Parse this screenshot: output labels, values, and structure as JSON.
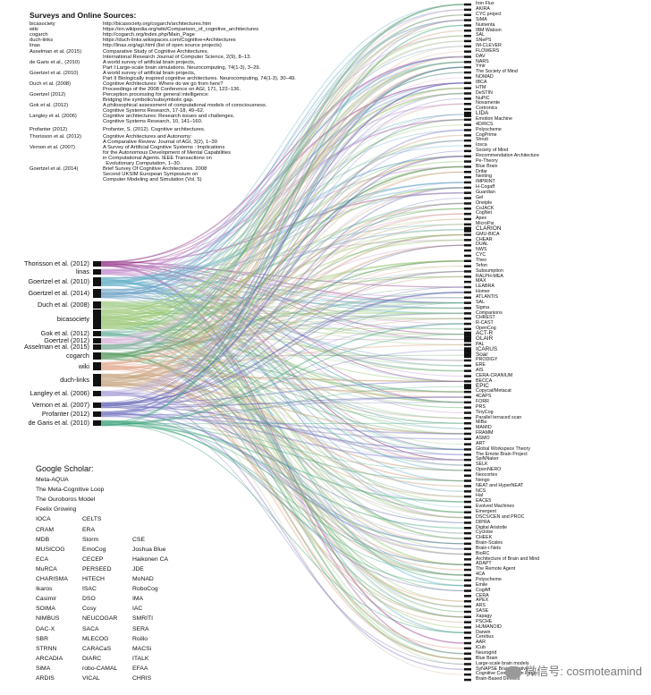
{
  "sources_title": "Surveys and Online Sources:",
  "sources": [
    {
      "key": "bicasociety",
      "value": "http://bicasociety.org/cogarch/architectures.htm"
    },
    {
      "key": "wiki",
      "value": "https://en.wikipedia.org/wiki/Comparison_of_cognitive_architectures"
    },
    {
      "key": "cogarch",
      "value": "http://cogarch.org/index.php/Main_Page"
    },
    {
      "key": "duch-links",
      "value": "https://duch-links.wikispaces.com/Cognitive+Architectures"
    },
    {
      "key": "linas",
      "value": "http://linas.org/agi.html (list of open source projects)"
    },
    {
      "key": "Asselman et al. (2015)",
      "value": "Comparative Study of Cognitive Architectures.\nInternational Research Journal of Computer Science, 2(9), 8–13."
    },
    {
      "key": "de Garis et al., (2010)",
      "value": "A world survey of artificial brain projects,\nPart I:Large-scale brain simulations. Neurocomputing, 74(1-3), 3–29."
    },
    {
      "key": "Goertzel et al. (2010)",
      "value": "A world survey of artificial brain projects,\nPart II Biologically inspired cognitive architectures. Neurocomputing, 74(1-3), 30–49."
    },
    {
      "key": "Duch et al. (2008)",
      "value": "Cognitive Architectures: Where do we go from here?\nProceedings of the 2008 Conference on AGI, 171, 122–136."
    },
    {
      "key": "Goertzel (2012)",
      "value": "Perception processing for general intelligence:\nBridging the symbolic/subsymbolic gap."
    },
    {
      "key": "Gok et al. (2012)",
      "value": "A philosophical assessment of computational models of consciousness.\nCognitive Systems Research, 17-18, 49–62."
    },
    {
      "key": "Langley et al. (2006)",
      "value": "Cognitive architectures: Research issues and challenges.\nCognitive Systems Research, 10, 141–160."
    },
    {
      "key": "Profanter (2012)",
      "value": "Profanter, S. (2012). Cognitive architectures."
    },
    {
      "key": "Thorisson et al. (2012)",
      "value": "Cognitive Architectures and Autonomy:\nA Comparative Review. Journal of AGI, 3(2), 1–30"
    },
    {
      "key": "Vernon et al. (2007)",
      "value": "A Survey of Artificial Cognitive Systems : Implications\nfor the Autonomous Development of Mental Capabilities\nin Computational Agents. IEEE Transactions on\n  Evolutionary Computation, 1–30."
    },
    {
      "key": "Goertzel et al. (2014)",
      "value": "Brief Survey Of Cognitive Architectures. 2008\nSecond UKSIM European Symposium on\nComputer Modeling and Simulation (Vol. 5)"
    }
  ],
  "left_nodes": [
    {
      "label": "Thorisson et al. (2012)",
      "color": "#8e2b82"
    },
    {
      "label": "linas",
      "color": "#c28dcd"
    },
    {
      "label": "Goertzel et al. (2010)",
      "color": "#67b0c8"
    },
    {
      "label": "Goertzel et al. (2014)",
      "color": "#6fa3c6"
    },
    {
      "label": "Duch et al. (2008)",
      "color": "#a6cf8e"
    },
    {
      "label": "bicasociety",
      "color": "#9bc978"
    },
    {
      "label": "Gok et al. (2012)",
      "color": "#6fb4a0"
    },
    {
      "label": "Goertzel (2012)",
      "color": "#d8b2d8"
    },
    {
      "label": "Asselman et al. (2015)",
      "color": "#7fae9b"
    },
    {
      "label": "cogarch",
      "color": "#5e9e64"
    },
    {
      "label": "wiki",
      "color": "#e2a68c"
    },
    {
      "label": "duch-links",
      "color": "#c7a884"
    },
    {
      "label": "Langley et al. (2006)",
      "color": "#a8a0d6"
    },
    {
      "label": "Vernon et al. (2007)",
      "color": "#5a5bb0"
    },
    {
      "label": "Profanter (2012)",
      "color": "#7b7bc4"
    },
    {
      "label": "de Garis et al. (2010)",
      "color": "#3aa37a"
    }
  ],
  "right_nodes": [
    "Iron Flux",
    "AKIRA",
    "CYC project",
    "SiMA",
    "Numenta",
    "IBM Watson",
    "SAL",
    "SNePS",
    "IM-CLEVER",
    "FLOWERS",
    "DAV",
    "NARS",
    "Ymir",
    "The Society of Mind",
    "NOMAD",
    "IBCA",
    "HTM",
    "DeSTIN",
    "NuPIC",
    "Novamente",
    "Cortronics",
    "LIDA",
    "Emotion Machine",
    "4D/RCS",
    "Polyscheme",
    "CogPrime",
    "Shruti",
    "Iosca",
    "Society of Mind",
    "Recommendation Architecture",
    "Pe-Theory",
    "Blue Brain",
    "Drifar",
    "Nexting",
    "IMPRINT",
    "H-Cogaff",
    "Guardian",
    "Gel",
    "Oneiple",
    "CoJACK",
    "CogNet",
    "Apex",
    "MicroPsi",
    "CLARION",
    "GMU-BICA",
    "CHEAR",
    "DUAL",
    "NWS",
    "CYC",
    "Theo",
    "Tefon",
    "Subsumption",
    "RALPH-MEA",
    "MAX",
    "LEABRA",
    "Homer",
    "ATLANTIS",
    "SAL",
    "Sigma",
    "Companions",
    "CHREST",
    "R-CAST",
    "OpenCog",
    "ACT-R",
    "GLAIR",
    "PAL",
    "ICARUS",
    "Soar",
    "PRODIGY",
    "ERE",
    "AIS",
    "CERA-CRANIUM",
    "BECCA",
    "EPIC",
    "Copycat/Metacat",
    "4CAPS",
    "FORR",
    "PRS",
    "TinyCog",
    "Parallel terraced scan",
    "MiBa",
    "MAMID",
    "FRAMM",
    "ASMO",
    "ART",
    "Global Workspace Theory",
    "The Emote Brain Project",
    "SpiNNaker",
    "SELK",
    "OpenNERO",
    "Neocortex",
    "Nengo",
    "NEAT and HyperNEAT",
    "NCS",
    "Hal",
    "EACE5",
    "Evolved Machines",
    "Emergent",
    "DSCS/CEN and PROC",
    "DIPRA",
    "Digital Aristotle",
    "Cyclobe",
    "CHEEK",
    "Brain-Scales",
    "Brain-i-Nets",
    "BioRC",
    "Architecture of Brain and Mind",
    "ADAPT",
    "The Remote Agent",
    "4CA",
    "Polyscheme",
    "Emile",
    "CogAff",
    "CERA",
    "APEX",
    "ARS",
    "SASE",
    "Xapagy",
    "PSCHE",
    "HUMANOID",
    "Darwin",
    "Cerebus",
    "AAR",
    "iCub",
    "Neurogrid",
    "Blue Brain",
    "Large-scale brain models",
    "SyNAPSE Brain Initiative",
    "Cognitive Computation Project",
    "Brain-Based Devices"
  ],
  "right_emphasis": [
    "LIDA",
    "CLARION",
    "ACT-R",
    "Soar",
    "EPIC",
    "GLAIR",
    "ICARUS"
  ],
  "scholar_title": "Google Scholar:",
  "scholar_single": [
    "Meta-AQUA",
    "The Meta-Cognitive Loop",
    "The Ouroboros Model",
    "Feelix Growing"
  ],
  "scholar_cols": [
    [
      "IOCA",
      "CRAM",
      "MDB",
      "MUSICOG",
      "ECA",
      "MuRCA",
      "CHARISMA",
      "Ikaros",
      "Casimir",
      "SOIMA",
      "NIMBUS",
      "DAC-X",
      "SBR",
      "STRNN",
      "ARCADIA",
      "SiMA",
      "ARDIS"
    ],
    [
      "CELTS",
      "ERA",
      "Storm",
      "EmoCog",
      "CECEP",
      "PERSEED",
      "HiTECH",
      "ISAC",
      "DSO",
      "Cosy",
      "NEUCOGAR",
      "SACA",
      "MLECOG",
      "CARACaS",
      "DIARC",
      "robo-CAMAL",
      "VICAL"
    ],
    [
      "",
      "",
      "CSE",
      "Joshua Blue",
      "Haikonen CA",
      "JDE",
      "MoNAD",
      "RoboCog",
      "IMA",
      "IAC",
      "SMRITI",
      "SERA",
      "Roillo",
      "MACSi",
      "ITALK",
      "EFAA",
      "CHRIS"
    ]
  ],
  "watermark": "微信号: cosmoteamind"
}
